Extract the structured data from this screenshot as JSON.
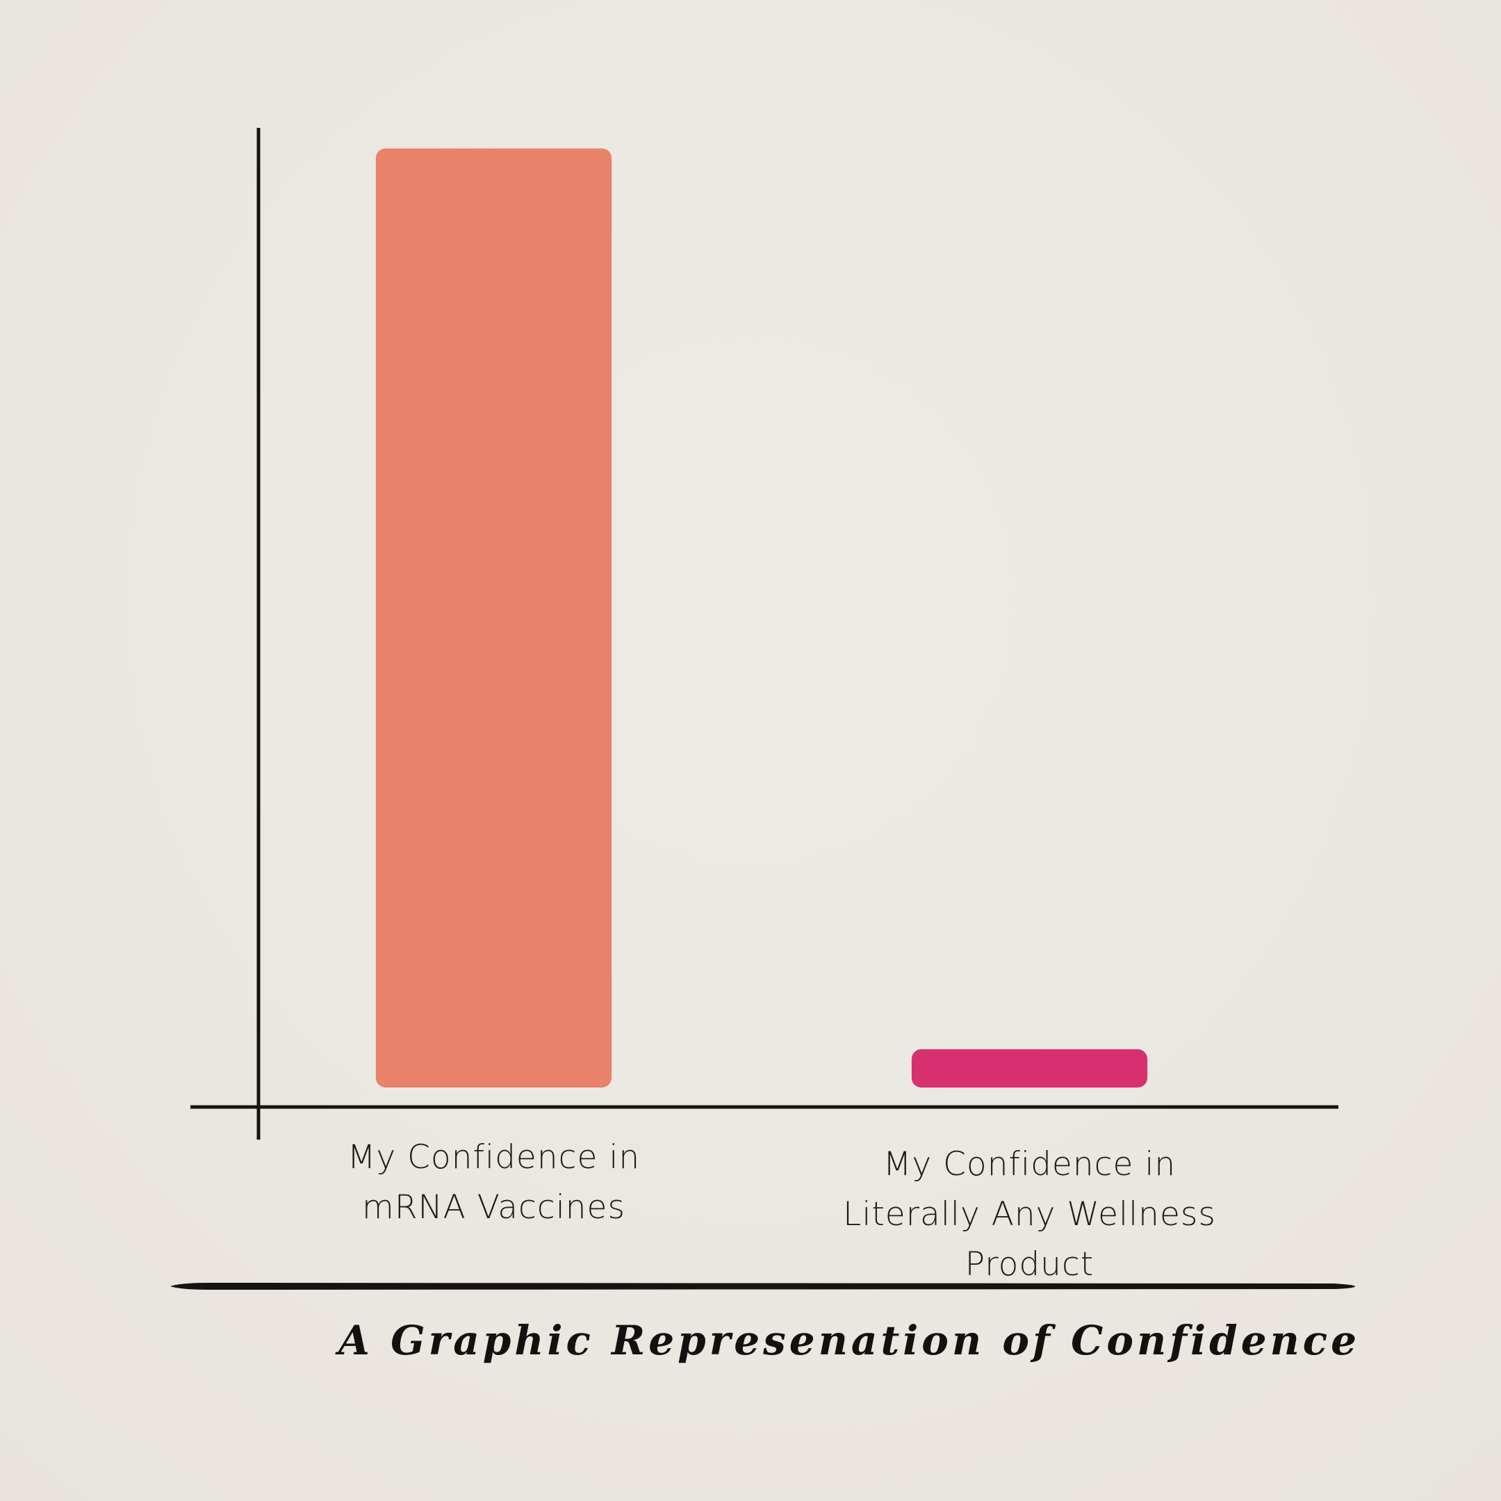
{
  "chart_data": {
    "type": "bar",
    "title": "A Graphic Represenation of Confidence",
    "categories": [
      "My Confidence in mRNA Vaccines",
      "My Confidence in Literally Any Wellness Product"
    ],
    "series": [
      {
        "name": null,
        "values": [
          98,
          4
        ]
      }
    ],
    "colors": [
      "#e8826b",
      "#d6306f"
    ],
    "ylim": [
      0,
      100
    ]
  }
}
